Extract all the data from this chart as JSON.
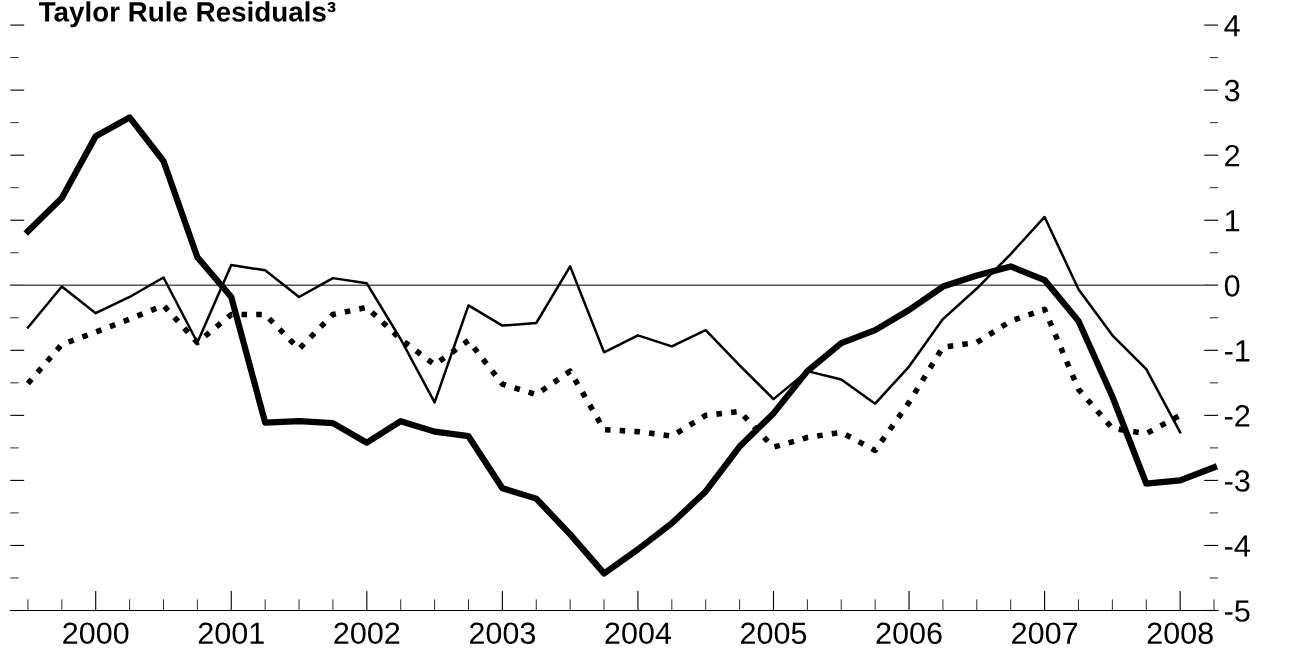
{
  "chart_data": {
    "type": "line",
    "title": "Taylor Rule Residuals³",
    "x": [
      2000.0,
      2000.25,
      2000.5,
      2000.75,
      2001.0,
      2001.25,
      2001.5,
      2001.75,
      2002.0,
      2002.25,
      2002.5,
      2002.75,
      2003.0,
      2003.25,
      2003.5,
      2003.75,
      2004.0,
      2004.25,
      2004.5,
      2004.75,
      2005.0,
      2005.25,
      2005.5,
      2005.75,
      2006.0,
      2006.25,
      2006.5,
      2006.75,
      2007.0,
      2007.25,
      2007.5,
      2007.75,
      2008.0,
      2008.25,
      2008.5,
      2008.75
    ],
    "series": [
      {
        "color": "#000000",
        "line_style": "solid",
        "values": [
          0.83,
          1.34,
          2.29,
          2.58,
          1.91,
          0.43,
          -0.18,
          -2.11,
          -2.09,
          -2.12,
          -2.42,
          -2.09,
          -2.25,
          -2.32,
          -3.12,
          -3.28,
          -3.83,
          -4.43,
          -4.06,
          -3.66,
          -3.17,
          -2.48,
          -1.97,
          -1.32,
          -0.89,
          -0.69,
          -0.38,
          -0.02,
          0.15,
          0.29,
          0.08,
          -0.55,
          -1.71,
          -3.05,
          -3.0,
          -2.8
        ]
      },
      {
        "color": "#000000",
        "line_style": "solid",
        "values": [
          -0.65,
          -0.02,
          -0.43,
          -0.18,
          0.12,
          -0.88,
          0.31,
          0.23,
          -0.18,
          0.11,
          0.03,
          -0.83,
          -1.8,
          -0.31,
          -0.62,
          -0.58,
          0.29,
          -1.03,
          -0.77,
          -0.94,
          -0.69,
          -1.23,
          -1.75,
          -1.32,
          -1.45,
          -1.82,
          -1.25,
          -0.52,
          -0.05,
          0.48,
          1.05,
          -0.06,
          -0.77,
          -1.29,
          -2.26,
          null
        ]
      },
      {
        "color": "#000000",
        "line_style": "dotted",
        "values": [
          -1.51,
          -0.91,
          -0.72,
          -0.52,
          -0.31,
          -0.88,
          -0.45,
          -0.45,
          -0.98,
          -0.45,
          -0.34,
          -0.83,
          -1.22,
          -0.85,
          -1.52,
          -1.68,
          -1.32,
          -2.22,
          -2.25,
          -2.32,
          -2.0,
          -1.94,
          -2.49,
          -2.34,
          -2.26,
          -2.54,
          -1.8,
          -0.95,
          -0.88,
          -0.55,
          -0.37,
          -1.6,
          -2.2,
          -2.28,
          -2.0,
          null
        ]
      }
    ],
    "xlim": [
      1999.87,
      2008.78
    ],
    "ylim": [
      -5,
      4
    ],
    "xticks": [
      {
        "value": 2000.5,
        "label": "2000"
      },
      {
        "value": 2001.5,
        "label": "2001"
      },
      {
        "value": 2002.5,
        "label": "2002"
      },
      {
        "value": 2003.5,
        "label": "2003"
      },
      {
        "value": 2004.5,
        "label": "2004"
      },
      {
        "value": 2005.5,
        "label": "2005"
      },
      {
        "value": 2006.5,
        "label": "2006"
      },
      {
        "value": 2007.5,
        "label": "2007"
      },
      {
        "value": 2008.5,
        "label": "2008"
      }
    ],
    "yticks": [
      -5,
      -4,
      -3,
      -2,
      -1,
      0,
      1,
      2,
      3,
      4
    ],
    "ref_lines": [
      {
        "axis": "y",
        "value": 0,
        "color": "#555555"
      }
    ],
    "grid": false,
    "legend": false
  }
}
